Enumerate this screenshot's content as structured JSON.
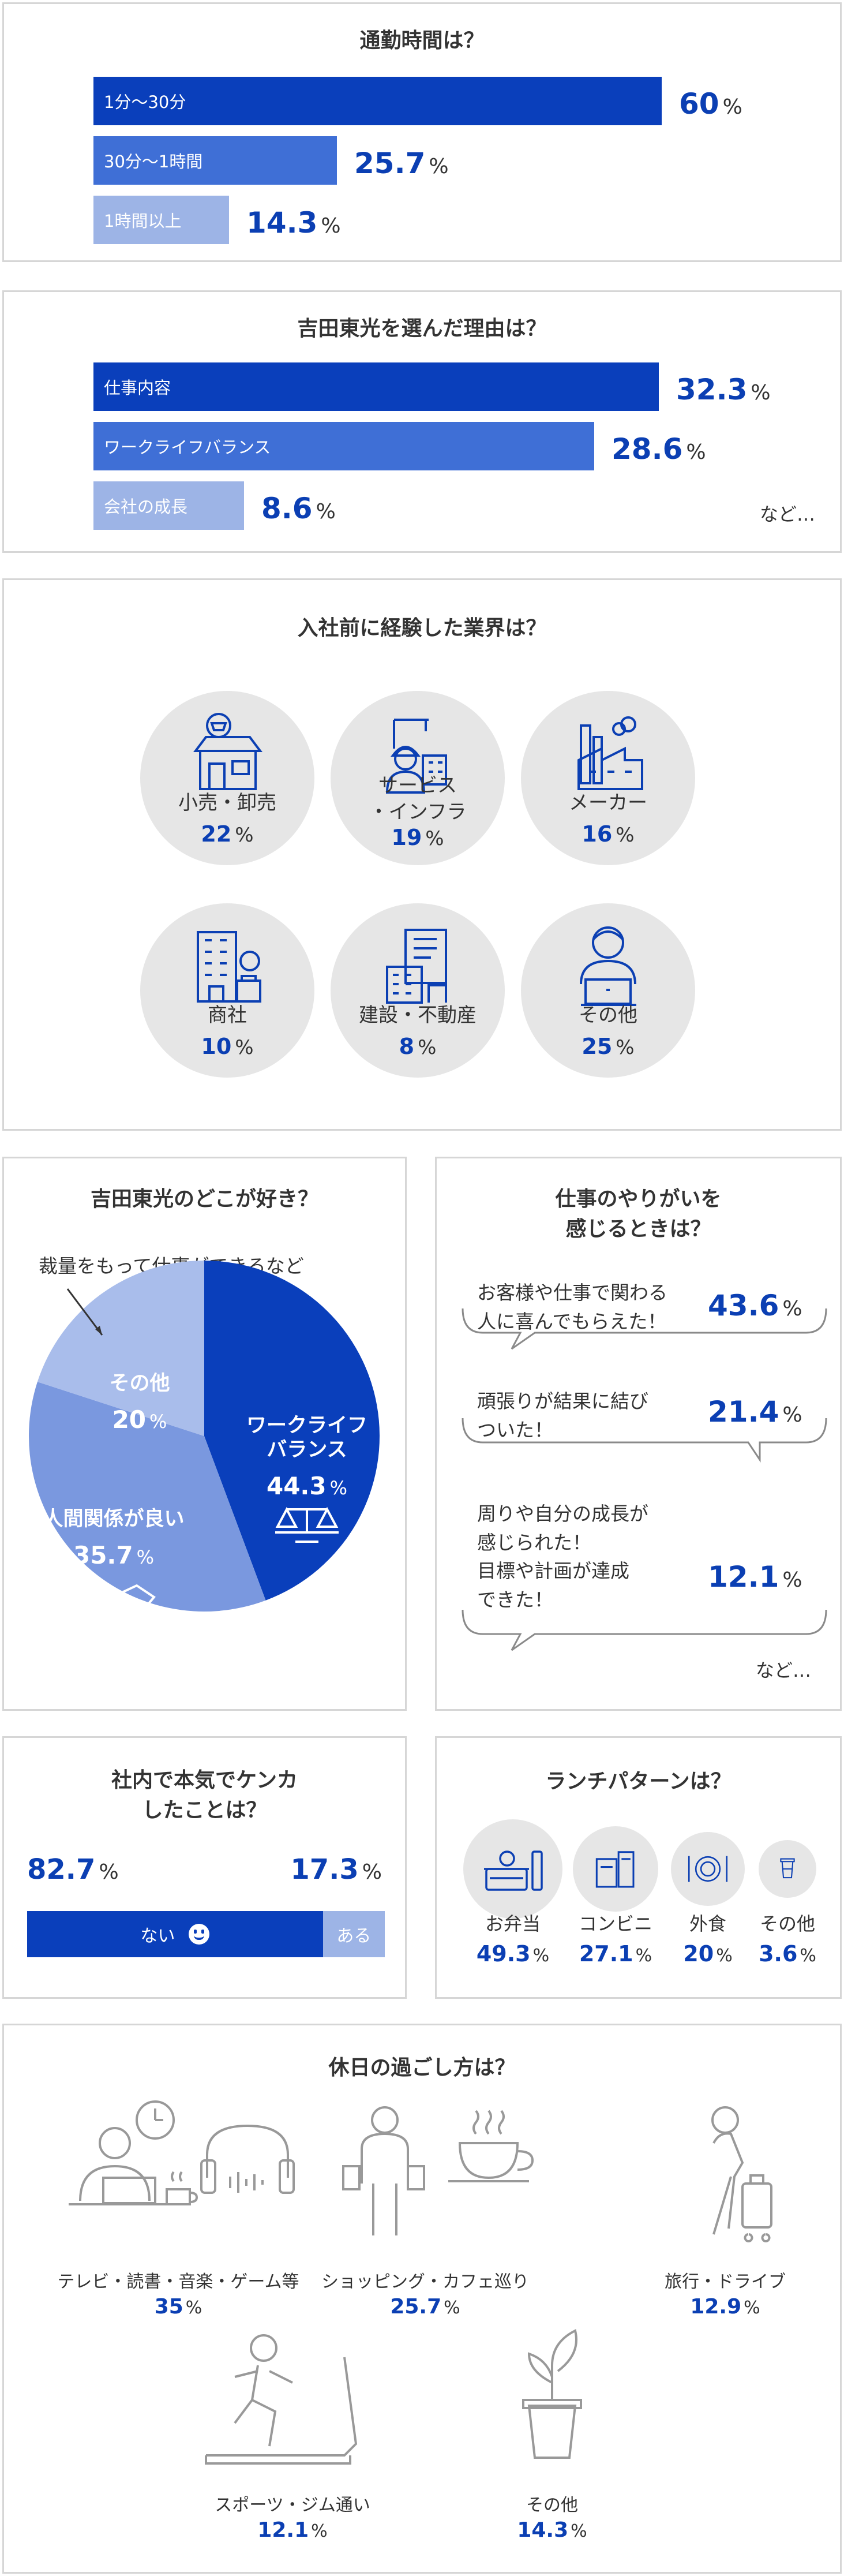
{
  "commute": {
    "title": "通勤時間は？",
    "unit": "%",
    "chart_data": {
      "type": "bar",
      "categories": [
        "1分〜30分",
        "30分〜1時間",
        "1時間以上"
      ],
      "values": [
        60,
        25.7,
        14.3
      ],
      "title": "通勤時間は？",
      "colors": [
        "#0a3fbb",
        "#3f6fd6",
        "#9db4e6"
      ]
    }
  },
  "reason": {
    "title": "吉田東光を選んだ理由は？",
    "unit": "%",
    "etc": "など…",
    "chart_data": {
      "type": "bar",
      "categories": [
        "仕事内容",
        "ワークライフバランス",
        "会社の成長"
      ],
      "values": [
        32.3,
        28.6,
        8.6
      ],
      "title": "吉田東光を選んだ理由は？",
      "colors": [
        "#0a3fbb",
        "#3f6fd6",
        "#9db4e6"
      ]
    }
  },
  "industry": {
    "title": "入社前に経験した業界は？",
    "unit": "%",
    "items": [
      {
        "label": "小売・卸売",
        "value": 22,
        "icon": "store-icon"
      },
      {
        "label": "サービス\n・インフラ",
        "value": 19,
        "icon": "worker-icon"
      },
      {
        "label": "メーカー",
        "value": 16,
        "icon": "factory-icon"
      },
      {
        "label": "商社",
        "value": 10,
        "icon": "trading-building-icon"
      },
      {
        "label": "建設・不動産",
        "value": 8,
        "icon": "real-estate-icon"
      },
      {
        "label": "その他",
        "value": 25,
        "icon": "office-worker-icon"
      }
    ]
  },
  "like": {
    "title": "吉田東光のどこが好き？",
    "callout": "裁量をもって仕事ができるなど",
    "unit": "%",
    "chart_data": {
      "type": "pie",
      "title": "吉田東光のどこが好き？",
      "categories": [
        "ワークライフバランス",
        "人間関係が良い",
        "その他"
      ],
      "labels": [
        "ワークライフ\nバランス",
        "人間関係が良い",
        "その他"
      ],
      "values": [
        44.3,
        35.7,
        20
      ],
      "colors": [
        "#0a3fbb",
        "#7a98df",
        "#a9bdeb"
      ]
    }
  },
  "rewarding": {
    "title": "仕事のやりがいを\n感じるときは？",
    "unit": "%",
    "etc": "など…",
    "items": [
      {
        "text": "お客様や仕事で関わる\n人に喜んでもらえた！",
        "value": 43.6
      },
      {
        "text": "頑張りが結果に結び\nついた！",
        "value": 21.4
      },
      {
        "text": "周りや自分の成長が\n感じられた！\n目標や計画が達成\nできた！",
        "value": 12.1
      }
    ]
  },
  "quarrel": {
    "title": "社内で本気でケンカ\nしたことは？",
    "unit": "%",
    "chart_data": {
      "type": "bar",
      "stacked": true,
      "categories": [
        "ない",
        "ある"
      ],
      "values": [
        82.7,
        17.3
      ],
      "colors": [
        "#0a3fbb",
        "#9db4e6"
      ]
    }
  },
  "lunch": {
    "title": "ランチパターンは？",
    "unit": "%",
    "items": [
      {
        "label": "お弁当",
        "value": 49.3,
        "icon": "bento-icon"
      },
      {
        "label": "コンビニ",
        "value": 27.1,
        "icon": "convenience-store-icon"
      },
      {
        "label": "外食",
        "value": 20,
        "icon": "dining-plate-icon"
      },
      {
        "label": "その他",
        "value": 3.6,
        "icon": "coffee-cup-icon"
      }
    ]
  },
  "holiday": {
    "title": "休日の過ごし方は？",
    "unit": "%",
    "items": [
      {
        "label": "テレビ・読書・音楽・ゲーム等",
        "value": 35,
        "icon": "relax-at-home-icon"
      },
      {
        "label": "ショッピング・カフェ巡り",
        "value": 25.7,
        "icon": "shopping-cafe-icon"
      },
      {
        "label": "旅行・ドライブ",
        "value": 12.9,
        "icon": "travel-icon"
      },
      {
        "label": "スポーツ・ジム通い",
        "value": 12.1,
        "icon": "treadmill-icon"
      },
      {
        "label": "その他",
        "value": 14.3,
        "icon": "potted-plant-icon"
      }
    ]
  }
}
